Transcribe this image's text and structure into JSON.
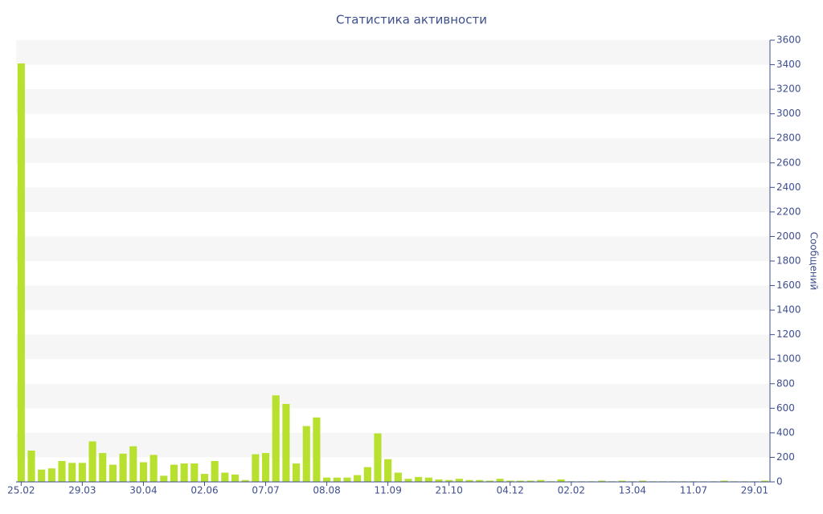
{
  "chart_data": {
    "type": "bar",
    "title": "Статистика активности",
    "y_label": "Сообщений",
    "categories": [
      "25.02",
      null,
      null,
      null,
      null,
      null,
      "29.03",
      null,
      null,
      null,
      null,
      null,
      "30.04",
      null,
      null,
      null,
      null,
      null,
      "02.06",
      null,
      null,
      null,
      null,
      null,
      "07.07",
      null,
      null,
      null,
      null,
      null,
      "08.08",
      null,
      null,
      null,
      null,
      null,
      "11.09",
      null,
      null,
      null,
      null,
      null,
      "21.10",
      null,
      null,
      null,
      null,
      null,
      "04.12",
      null,
      null,
      null,
      null,
      null,
      "02.02",
      null,
      null,
      null,
      null,
      null,
      "13.04",
      null,
      null,
      null,
      null,
      null,
      "11.07",
      null,
      null,
      null,
      null,
      null,
      "29.01",
      null
    ],
    "values": [
      3410,
      255,
      100,
      110,
      170,
      155,
      155,
      330,
      235,
      140,
      230,
      290,
      160,
      220,
      50,
      140,
      150,
      150,
      65,
      170,
      75,
      60,
      15,
      225,
      235,
      705,
      635,
      150,
      455,
      525,
      35,
      35,
      35,
      55,
      120,
      395,
      185,
      75,
      25,
      40,
      35,
      20,
      15,
      25,
      15,
      15,
      10,
      25,
      10,
      10,
      10,
      15,
      5,
      20,
      5,
      5,
      5,
      10,
      5,
      10,
      5,
      10,
      5,
      5,
      5,
      5,
      5,
      5,
      5,
      10,
      5,
      5,
      5,
      10
    ],
    "color": "#b8e02e",
    "ylim": [
      0,
      3600
    ],
    "yticks": [
      0,
      200,
      400,
      600,
      800,
      1000,
      1200,
      1400,
      1600,
      1800,
      2000,
      2200,
      2400,
      2600,
      2800,
      3000,
      3200,
      3400,
      3600
    ],
    "y_axis_side": "right",
    "banded_background": true
  }
}
